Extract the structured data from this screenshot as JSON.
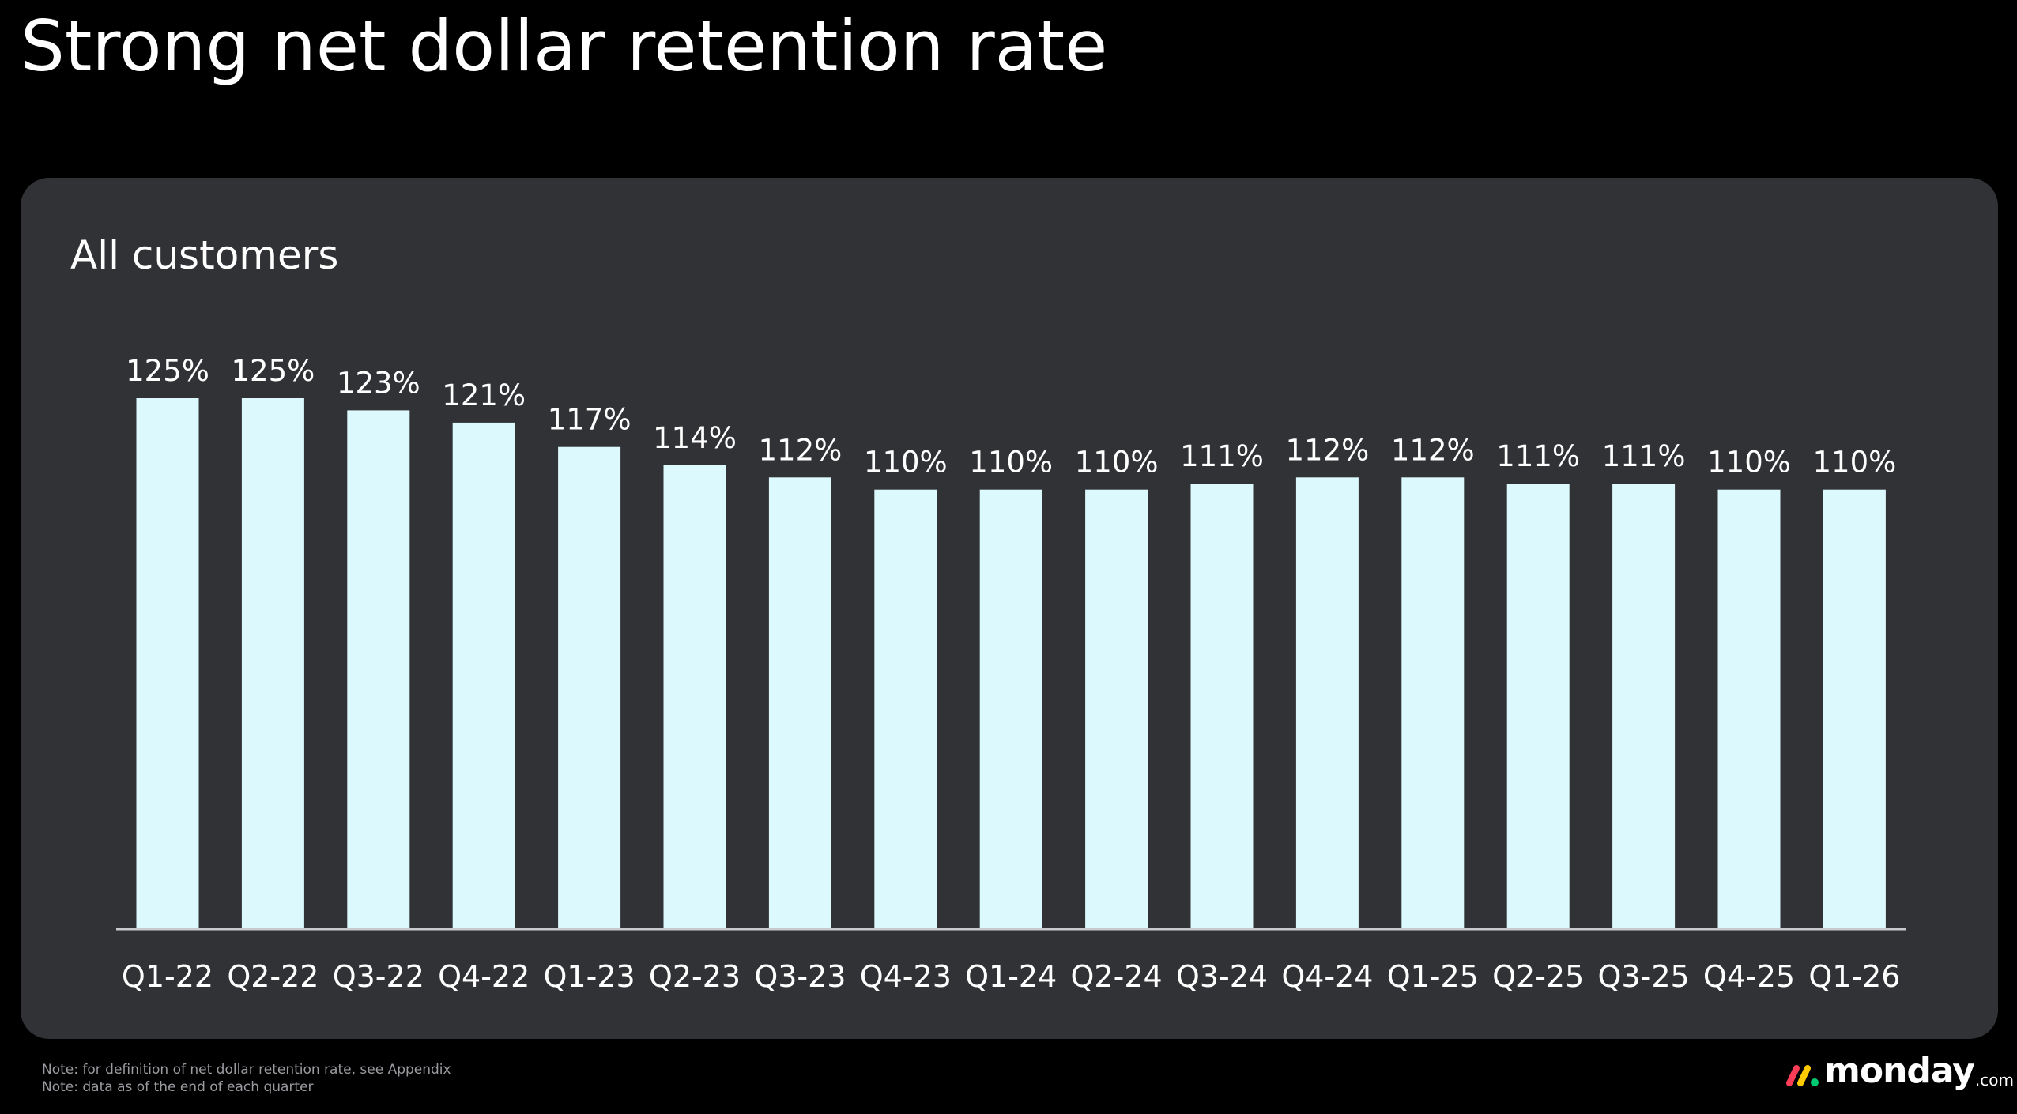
{
  "page": {
    "title": "Strong net dollar retention rate"
  },
  "card": {
    "title": "All customers"
  },
  "footnotes": [
    "Note: for definition of net dollar retention rate, see Appendix",
    "Note: data as of the end of each quarter"
  ],
  "logo": {
    "word": "monday",
    "suffix": ".com",
    "mark_colors": [
      "#ff3d57",
      "#ffcb00",
      "#00ca72"
    ]
  },
  "colors": {
    "background": "#000000",
    "card": "#313236",
    "bar": "#dcf9fd",
    "baseline": "#c9c9cc",
    "text": "#ffffff",
    "footnote": "#9a9aa0"
  },
  "chart_data": {
    "type": "bar",
    "title": "All customers",
    "categories": [
      "Q1-22",
      "Q2-22",
      "Q3-22",
      "Q4-22",
      "Q1-23",
      "Q2-23",
      "Q3-23",
      "Q4-23",
      "Q1-24",
      "Q2-24",
      "Q3-24",
      "Q4-24",
      "Q1-25",
      "Q2-25",
      "Q3-25",
      "Q4-25",
      "Q1-26"
    ],
    "values": [
      125,
      125,
      123,
      121,
      117,
      114,
      112,
      110,
      110,
      110,
      111,
      112,
      112,
      111,
      111,
      110,
      110
    ],
    "value_labels": [
      "125%",
      "125%",
      "123%",
      "121%",
      "117%",
      "114%",
      "112%",
      "110%",
      "110%",
      "110%",
      "111%",
      "112%",
      "112%",
      "111%",
      "111%",
      "110%",
      "110%"
    ],
    "unit": "%",
    "xlabel": "",
    "ylabel": "",
    "ylim": [
      38,
      125
    ],
    "grid": false,
    "legend": "none"
  }
}
